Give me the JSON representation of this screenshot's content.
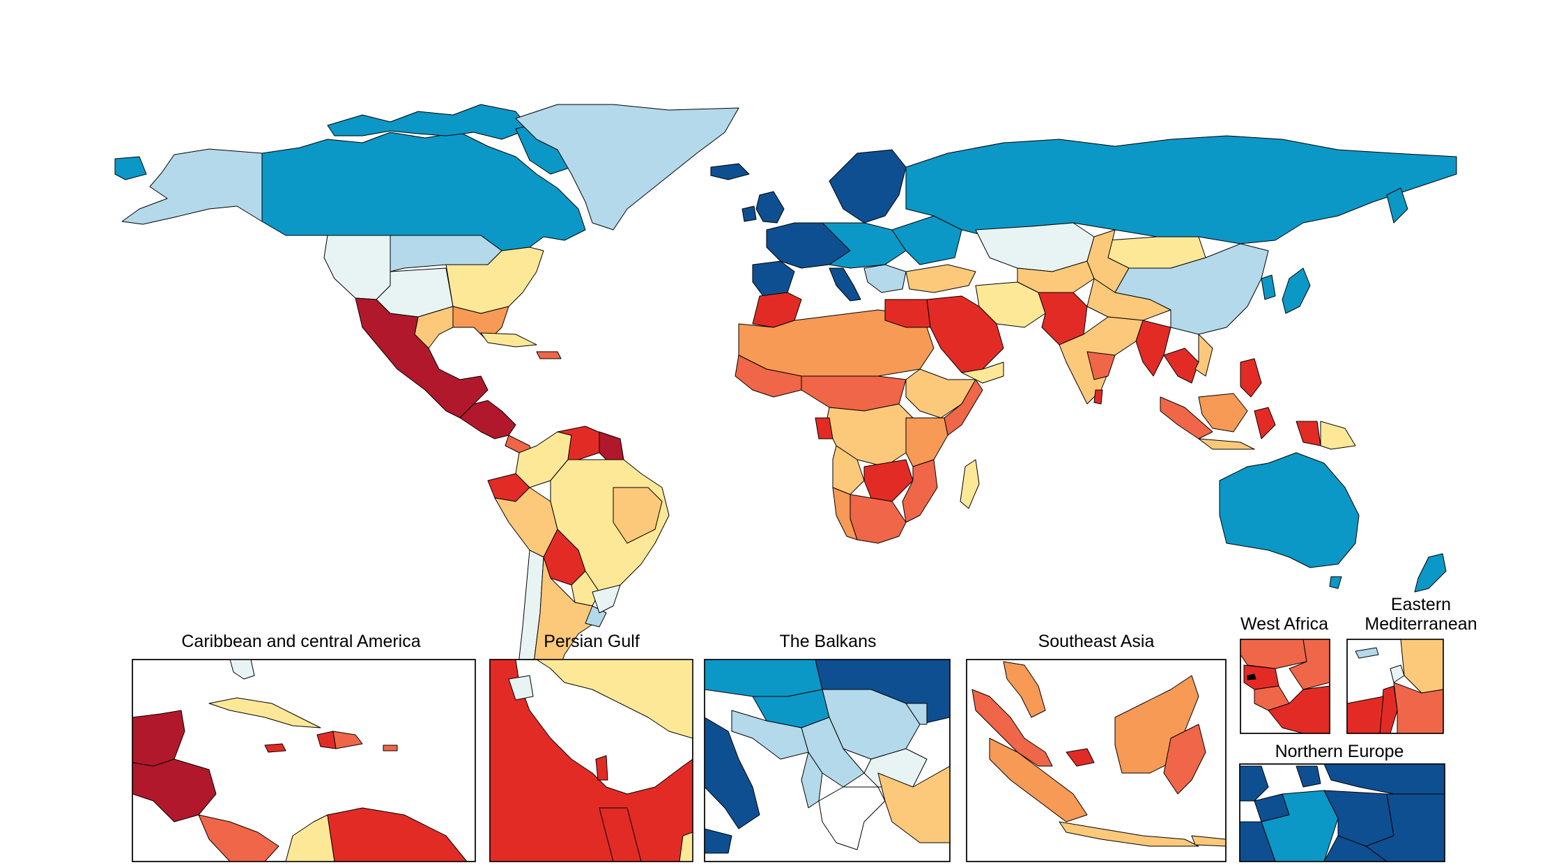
{
  "palette": {
    "c_dark_red": "#b2182b",
    "c_red": "#e32b25",
    "c_red_orange": "#ef6648",
    "c_orange": "#f69a56",
    "c_light_orange": "#fcc97a",
    "c_yellow": "#fde898",
    "c_very_light": "#e8f4f3",
    "c_light_blue": "#b3d9ea",
    "c_mid_blue": "#0b98c7",
    "c_dark_blue": "#0e4f92"
  },
  "insets": [
    {
      "id": "caribbean",
      "title": "Caribbean and central America"
    },
    {
      "id": "persian-gulf",
      "title": "Persian Gulf"
    },
    {
      "id": "balkans",
      "title": "The Balkans"
    },
    {
      "id": "southeast-asia",
      "title": "Southeast Asia"
    },
    {
      "id": "west-africa",
      "title": "West Africa"
    },
    {
      "id": "eastern-med",
      "title_line1": "Eastern",
      "title_line2": "Mediterranean"
    },
    {
      "id": "northern-europe",
      "title": "Northern Europe"
    }
  ]
}
